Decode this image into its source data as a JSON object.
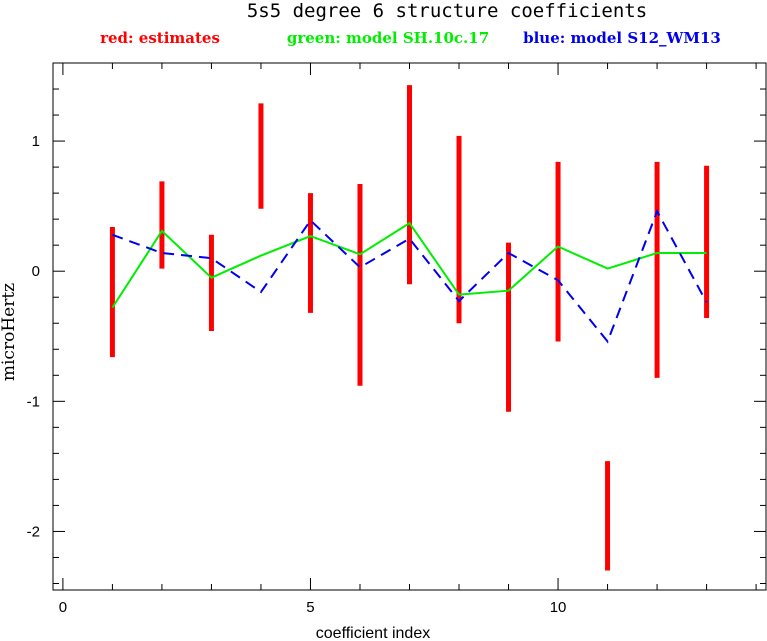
{
  "chart_data": {
    "type": "line",
    "title": "5s5 degree 6 structure coefficients",
    "xlabel": "coefficient index",
    "ylabel": "microHertz",
    "xlim": [
      -0.2,
      14.2
    ],
    "ylim": [
      -2.45,
      1.6
    ],
    "xticks": [
      0,
      5,
      10
    ],
    "yticks": [
      -2,
      -1,
      0,
      1
    ],
    "x_minor_step": 1,
    "y_minor_step": 0.2,
    "grid": false,
    "legend": [
      {
        "label": "red: estimates",
        "color": "#ff0000"
      },
      {
        "label": "green: model SH.10c.17",
        "color": "#00ee00"
      },
      {
        "label": "blue: model S12_WM13",
        "color": "#0000ee"
      }
    ],
    "estimates": {
      "color": "#ff0000",
      "x": [
        1,
        2,
        3,
        4,
        5,
        6,
        7,
        8,
        9,
        10,
        11,
        12,
        13
      ],
      "low": [
        -0.66,
        0.02,
        -0.46,
        0.48,
        -0.32,
        -0.88,
        -0.1,
        -0.4,
        -1.08,
        -0.54,
        -2.3,
        -0.82,
        -0.36
      ],
      "high": [
        0.34,
        0.69,
        0.28,
        1.29,
        0.6,
        0.67,
        1.43,
        1.04,
        0.22,
        0.84,
        -1.46,
        0.84,
        0.81
      ]
    },
    "series": [
      {
        "name": "model SH.10c.17",
        "color": "#00ee00",
        "style": "solid",
        "x": [
          1,
          2,
          3,
          4,
          5,
          6,
          7,
          8,
          9,
          10,
          11,
          12,
          13
        ],
        "y": [
          -0.28,
          0.31,
          -0.05,
          0.12,
          0.27,
          0.13,
          0.37,
          -0.18,
          -0.15,
          0.19,
          0.02,
          0.14,
          0.14
        ]
      },
      {
        "name": "model S12_WM13",
        "color": "#0000ee",
        "style": "dashed",
        "x": [
          1,
          2,
          3,
          4,
          5,
          6,
          7,
          8,
          9,
          10,
          11,
          12,
          13
        ],
        "y": [
          0.28,
          0.14,
          0.1,
          -0.16,
          0.39,
          0.03,
          0.25,
          -0.23,
          0.14,
          -0.07,
          -0.54,
          0.46,
          -0.24
        ]
      }
    ]
  }
}
